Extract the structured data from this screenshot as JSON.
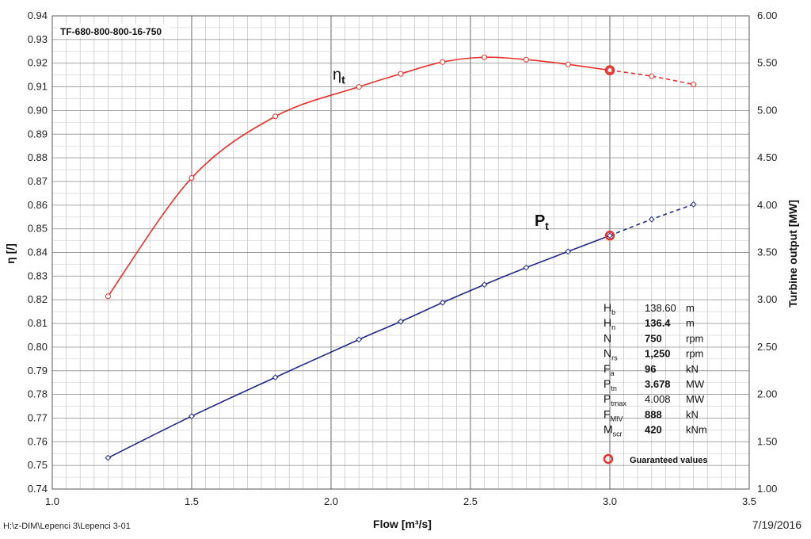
{
  "chart_data": {
    "type": "line",
    "title": "TF-680-800-800-16-750",
    "xlabel": "Flow [m³/s]",
    "ylabel_left": "η [/]",
    "ylabel_right": "Turbine output  [MW]",
    "xlim": [
      1.0,
      3.5
    ],
    "ylim_left": [
      0.74,
      0.94
    ],
    "ylim_right": [
      1.0,
      6.0
    ],
    "grid": true,
    "x_ticks": [
      "1.0",
      "1.5",
      "2.0",
      "2.5",
      "3.0",
      "3.5"
    ],
    "y_left_ticks": [
      "0.74",
      "0.75",
      "0.76",
      "0.77",
      "0.78",
      "0.79",
      "0.80",
      "0.81",
      "0.82",
      "0.83",
      "0.84",
      "0.85",
      "0.86",
      "0.87",
      "0.88",
      "0.89",
      "0.90",
      "0.91",
      "0.92",
      "0.93",
      "0.94"
    ],
    "y_right_ticks": [
      "1.00",
      "1.50",
      "2.00",
      "2.50",
      "3.00",
      "3.50",
      "4.00",
      "4.50",
      "5.00",
      "5.50",
      "6.00"
    ],
    "series": [
      {
        "name": "η",
        "sub": "t",
        "axis": "left",
        "color": "#e8302a",
        "marker": "circle",
        "x": [
          1.2,
          1.5,
          1.8,
          2.1,
          2.25,
          2.4,
          2.55,
          2.7,
          2.85,
          3.0,
          3.15,
          3.3
        ],
        "y": [
          0.8215,
          0.8715,
          0.8975,
          0.91,
          0.9155,
          0.9205,
          0.9225,
          0.9215,
          0.9195,
          0.917,
          0.9145,
          0.911
        ],
        "dashed_from_x": 3.0
      },
      {
        "name": "P",
        "sub": "t",
        "axis": "right",
        "color": "#1f2a8a",
        "marker": "diamond",
        "x": [
          1.2,
          1.5,
          1.8,
          2.1,
          2.25,
          2.4,
          2.55,
          2.7,
          2.85,
          3.0,
          3.15,
          3.3
        ],
        "y": [
          1.33,
          1.77,
          2.18,
          2.58,
          2.77,
          2.97,
          3.16,
          3.34,
          3.51,
          3.678,
          3.85,
          4.008
        ],
        "dashed_from_x": 3.0
      }
    ],
    "guaranteed_points": [
      {
        "x": 3.0,
        "y": 0.917,
        "axis": "left"
      },
      {
        "x": 3.0,
        "y": 3.678,
        "axis": "right"
      }
    ],
    "guaranteed_label": "Guaranteed values",
    "parameters": [
      {
        "sym": "H",
        "sub": "b",
        "value": "138.60",
        "unit": "m",
        "bold": false
      },
      {
        "sym": "H",
        "sub": "n",
        "value": "136.4",
        "unit": "m",
        "bold": true
      },
      {
        "sym": "N",
        "sub": "",
        "value": "750",
        "unit": "rpm",
        "bold": true
      },
      {
        "sym": "N",
        "sub": "rs",
        "value": "1,250",
        "unit": "rpm",
        "bold": true
      },
      {
        "sym": "F",
        "sub": "a",
        "value": "96",
        "unit": "kN",
        "bold": true
      },
      {
        "sym": "P",
        "sub": "tn",
        "value": "3.678",
        "unit": "MW",
        "bold": true
      },
      {
        "sym": "P",
        "sub": "tmax",
        "value": "4.008",
        "unit": "MW",
        "bold": false
      },
      {
        "sym": "F",
        "sub": "MIV",
        "value": "888",
        "unit": "kN",
        "bold": true
      },
      {
        "sym": "M",
        "sub": "scr",
        "value": "420",
        "unit": "kNm",
        "bold": true
      }
    ]
  },
  "footer": {
    "path": "H:\\z-DIM\\Lepenci 3\\Lepenci 3-01",
    "date": "7/19/2016"
  }
}
